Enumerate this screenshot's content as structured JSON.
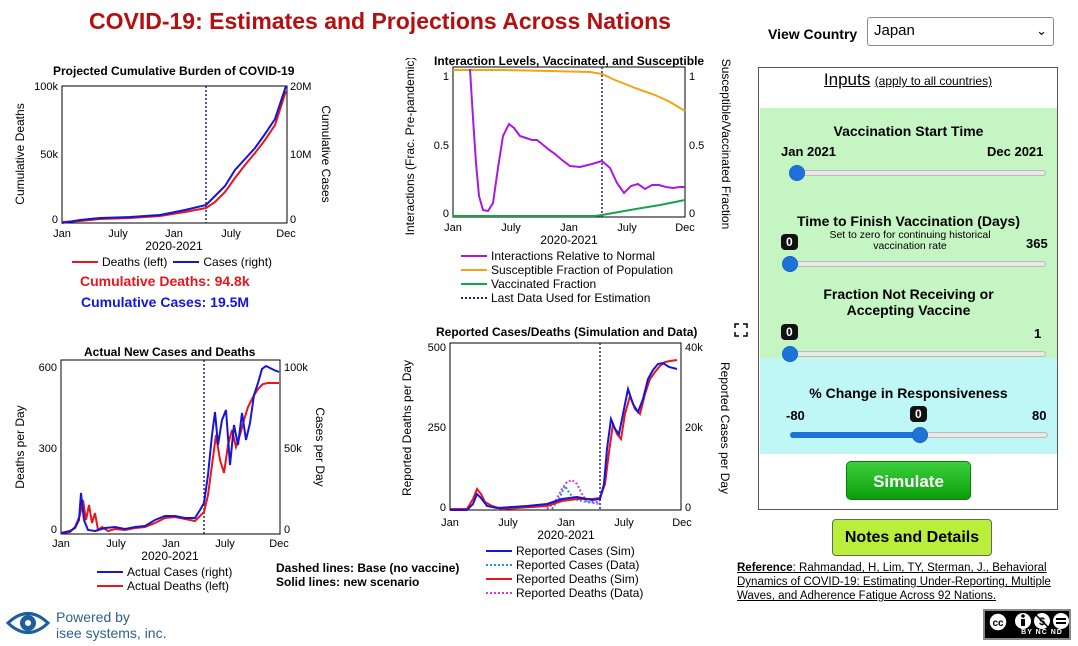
{
  "title": "COVID-19: Estimates and Projections Across Nations",
  "view_country": {
    "label": "View Country",
    "selected": "Japan"
  },
  "charts": {
    "burden": {
      "title": "Projected Cumulative Burden of COVID-19",
      "ylabel_left": "Cumulative Deaths",
      "ylabel_right": "Cumulative Cases",
      "xlabel": "2020-2021",
      "xticks": [
        "Jan",
        "July",
        "Jan",
        "July",
        "Dec"
      ],
      "yticks_left": [
        "100k",
        "50k",
        "0"
      ],
      "yticks_right": [
        "20M",
        "10M",
        "0"
      ],
      "legend": [
        "Deaths (left)",
        "Cases (right)"
      ],
      "cum_deaths": "Cumulative Deaths: 94.8k",
      "cum_cases": "Cumulative Cases: 19.5M"
    },
    "interaction": {
      "title": "Interaction Levels, Vaccinated, and Susceptible",
      "ylabel_left": "Interactions (Frac. Pre-pandemic)",
      "ylabel_right": "Susceptible/Vaccinated Fraction",
      "xlabel": "2020-2021",
      "xticks": [
        "Jan",
        "July",
        "Jan",
        "July",
        "Dec"
      ],
      "yticks_left": [
        "1",
        "0.5",
        "0"
      ],
      "yticks_right": [
        "1",
        "0.5",
        "0"
      ],
      "legend": [
        "Interactions Relative to Normal",
        "Susceptible Fraction of Population",
        "Vaccinated Fraction",
        "Last Data Used for Estimation"
      ]
    },
    "new_cases": {
      "title": "Actual New Cases and Deaths",
      "ylabel_left": "Deaths per Day",
      "ylabel_right": "Cases per Day",
      "xlabel": "2020-2021",
      "xticks": [
        "Jan",
        "July",
        "Jan",
        "July",
        "Dec"
      ],
      "yticks_left": [
        "600",
        "300",
        "0"
      ],
      "yticks_right": [
        "100k",
        "50k",
        "0"
      ],
      "legend": [
        "Actual Cases (right)",
        "Actual Deaths (left)"
      ]
    },
    "reported": {
      "title": "Reported Cases/Deaths (Simulation and Data)",
      "ylabel_left": "Reported Deaths per Day",
      "ylabel_right": "Reported Cases per Day",
      "xlabel": "2020-2021",
      "xticks": [
        "Jan",
        "July",
        "Jan",
        "July",
        "Dec"
      ],
      "yticks_left": [
        "500",
        "250",
        "0"
      ],
      "yticks_right": [
        "40k",
        "20k",
        "0"
      ],
      "legend": [
        "Reported Cases (Sim)",
        "Reported Cases (Data)",
        "Reported Deaths (Sim)",
        "Reported Deaths (Data)"
      ]
    }
  },
  "notes": {
    "dashed": "Dashed lines: Base (no vaccine)",
    "solid": "Solid lines: new scenario"
  },
  "inputs": {
    "title": "Inputs",
    "subtitle": "(apply to all countries)",
    "vaccination_start": {
      "title": "Vaccination Start Time",
      "min": "Jan 2021",
      "max": "Dec 2021",
      "fraction": 0.0
    },
    "time_to_finish": {
      "title": "Time to Finish Vaccination (Days)",
      "subtitle": "Set to zero for continuing historical vaccination rate",
      "value": "0",
      "max": "365",
      "fraction": 0.0
    },
    "fraction_not": {
      "title": "Fraction Not Receiving or Accepting Vaccine",
      "value": "0",
      "max": "1",
      "fraction": 0.0
    },
    "responsiveness": {
      "title": "% Change in Responsiveness",
      "min": "-80",
      "value": "0",
      "max": "80",
      "fraction": 0.5
    }
  },
  "buttons": {
    "simulate": "Simulate",
    "notes": "Notes and Details"
  },
  "reference": {
    "label": "Reference",
    "text": ": Rahmandad, H, Lim, TY, Sterman, J., Behavioral Dynamics of COVID-19: Estimating Under-Reporting, Multiple Waves, and Adherence Fatigue Across 92 Nations."
  },
  "footer": {
    "powered_line1": "Powered by",
    "powered_line2": "isee systems, inc.",
    "license": "BY NC ND"
  },
  "colors": {
    "title": "#b50f0f",
    "red": "#e8151b",
    "blue": "#1515d8",
    "purple": "#a81ae0",
    "orange": "#f5a310",
    "green": "#17a34a",
    "navy": "#1a237e",
    "magenta": "#d63ad6",
    "lightblue": "#2a8fe0",
    "green_panel": "#c4f5c2",
    "cyan_panel": "#bff6f6"
  }
}
